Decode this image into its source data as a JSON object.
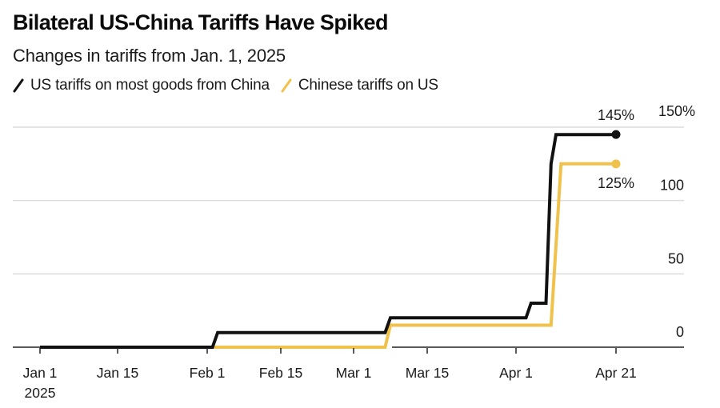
{
  "title": "Bilateral US-China Tariffs Have Spiked",
  "subtitle": "Changes in tariffs from Jan. 1, 2025",
  "legend": [
    {
      "label": "US tariffs on most goods from China",
      "color": "#111111",
      "icon": "line-swatch-icon"
    },
    {
      "label": "Chinese tariffs on US",
      "color": "#F0C24B",
      "icon": "line-swatch-icon"
    }
  ],
  "chart_data": {
    "type": "line",
    "title": "Bilateral US-China Tariffs Have Spiked",
    "subtitle": "Changes in tariffs from Jan. 1, 2025",
    "xlabel": "",
    "ylabel": "",
    "x_ticks": [
      {
        "date": "2025-01-01",
        "label": "Jan 1",
        "sublabel": "2025"
      },
      {
        "date": "2025-01-15",
        "label": "Jan 15"
      },
      {
        "date": "2025-02-01",
        "label": "Feb 1"
      },
      {
        "date": "2025-02-15",
        "label": "Feb 15"
      },
      {
        "date": "2025-03-01",
        "label": "Mar 1"
      },
      {
        "date": "2025-03-15",
        "label": "Mar 15"
      },
      {
        "date": "2025-04-01",
        "label": "Apr 1"
      },
      {
        "date": "2025-04-21",
        "label": "Apr 21"
      }
    ],
    "y_ticks": [
      {
        "value": 0,
        "label": "0"
      },
      {
        "value": 50,
        "label": "50"
      },
      {
        "value": 100,
        "label": "100"
      },
      {
        "value": 150,
        "label": "150%"
      }
    ],
    "ylim": [
      0,
      150
    ],
    "xlim": [
      "2025-01-01",
      "2025-04-21"
    ],
    "grid": true,
    "legend_position": "top-left",
    "series": [
      {
        "name": "US tariffs on most goods from China",
        "color": "#111111",
        "end_label": "145%",
        "end_label_position": "above",
        "points": [
          [
            "2025-01-01",
            0
          ],
          [
            "2025-02-02",
            0
          ],
          [
            "2025-02-03",
            10
          ],
          [
            "2025-03-07",
            10
          ],
          [
            "2025-03-08",
            20
          ],
          [
            "2025-04-03",
            20
          ],
          [
            "2025-04-04",
            30
          ],
          [
            "2025-04-07",
            30
          ],
          [
            "2025-04-08",
            125
          ],
          [
            "2025-04-09",
            145
          ],
          [
            "2025-04-21",
            145
          ]
        ]
      },
      {
        "name": "Chinese tariffs on US",
        "color": "#F0C24B",
        "end_label": "125%",
        "end_label_position": "below",
        "points": [
          [
            "2025-01-01",
            0
          ],
          [
            "2025-03-07",
            0
          ],
          [
            "2025-03-08",
            15
          ],
          [
            "2025-04-08",
            15
          ],
          [
            "2025-04-10",
            125
          ],
          [
            "2025-04-21",
            125
          ]
        ]
      }
    ]
  }
}
